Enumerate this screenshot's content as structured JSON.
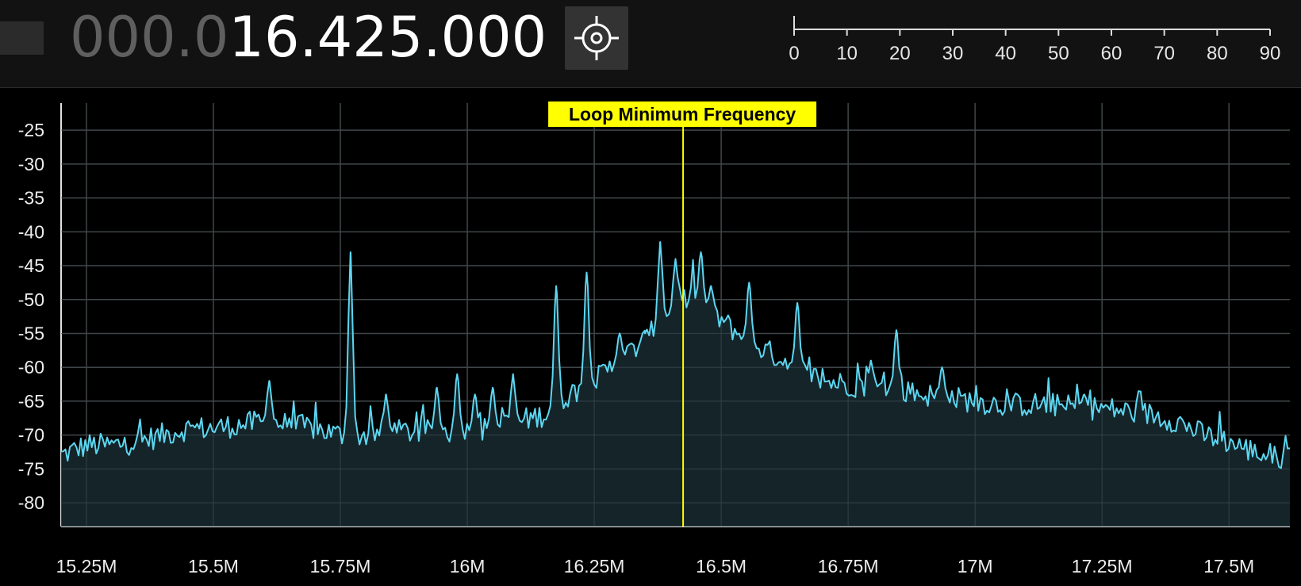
{
  "frequency_display": {
    "dim_part": "000.0",
    "bright_part": "16.425.000"
  },
  "center_button": {
    "icon": "crosshair-icon"
  },
  "gain_scale": {
    "ticks": [
      "0",
      "10",
      "20",
      "30",
      "40",
      "50",
      "60",
      "70",
      "80",
      "90"
    ]
  },
  "colors": {
    "trace": "#5cd6f0",
    "fill": "#172a30",
    "marker": "#ffff00",
    "marker_label_bg": "#ffff00",
    "marker_label_text": "#000000",
    "grid": "#444444"
  },
  "marker": {
    "label": "Loop Minimum Frequency",
    "frequency": 16.425
  },
  "chart_data": {
    "type": "line",
    "xlabel": "",
    "ylabel": "",
    "xlim": [
      15.2,
      17.62
    ],
    "ylim": [
      -83.5,
      -21
    ],
    "x_ticks": [
      15.25,
      15.5,
      15.75,
      16.0,
      16.25,
      16.5,
      16.75,
      17.0,
      17.25,
      17.5
    ],
    "x_tick_labels": [
      "15.25M",
      "15.5M",
      "15.75M",
      "16M",
      "16.25M",
      "16.5M",
      "16.75M",
      "17M",
      "17.25M",
      "17.5M"
    ],
    "y_ticks": [
      -25,
      -30,
      -35,
      -40,
      -45,
      -50,
      -55,
      -60,
      -65,
      -70,
      -75,
      -80
    ],
    "y_tick_labels": [
      "-25",
      "-30",
      "-35",
      "-40",
      "-45",
      "-50",
      "-55",
      "-60",
      "-65",
      "-70",
      "-75",
      "-80"
    ],
    "grid": true,
    "series": [
      {
        "x": [
          15.2,
          15.25,
          15.3,
          15.35,
          15.4,
          15.45,
          15.5,
          15.55,
          15.6,
          15.65,
          15.7,
          15.75,
          15.8,
          15.85,
          15.9,
          15.95,
          16.0,
          16.05,
          16.1,
          16.15,
          16.2,
          16.25,
          16.3,
          16.35,
          16.4,
          16.425,
          16.45,
          16.5,
          16.55,
          16.6,
          16.65,
          16.7,
          16.75,
          16.8,
          16.85,
          16.9,
          16.95,
          17.0,
          17.05,
          17.1,
          17.15,
          17.2,
          17.25,
          17.3,
          17.35,
          17.4,
          17.45,
          17.5,
          17.55,
          17.6
        ],
        "values": [
          -73,
          -71.5,
          -71.5,
          -71,
          -70,
          -69,
          -69,
          -68.5,
          -68,
          -68.5,
          -69,
          -70,
          -70,
          -69.5,
          -69.5,
          -69.5,
          -69.5,
          -69,
          -68,
          -67,
          -64,
          -62,
          -59,
          -56,
          -52,
          -50,
          -50,
          -53,
          -56,
          -58,
          -60,
          -62,
          -62.5,
          -63,
          -63.5,
          -64,
          -64.5,
          -65,
          -65.5,
          -65.5,
          -65.5,
          -66,
          -66,
          -66.5,
          -67,
          -68,
          -70,
          -71,
          -72.5,
          -73.5
        ]
      }
    ],
    "spikes": [
      {
        "x": 15.61,
        "y": -62
      },
      {
        "x": 15.77,
        "y": -43
      },
      {
        "x": 15.84,
        "y": -64
      },
      {
        "x": 15.94,
        "y": -63
      },
      {
        "x": 15.98,
        "y": -61
      },
      {
        "x": 16.015,
        "y": -64
      },
      {
        "x": 16.05,
        "y": -63
      },
      {
        "x": 16.09,
        "y": -61
      },
      {
        "x": 16.175,
        "y": -48
      },
      {
        "x": 16.235,
        "y": -46
      },
      {
        "x": 16.3,
        "y": -55
      },
      {
        "x": 16.35,
        "y": -55
      },
      {
        "x": 16.38,
        "y": -41.5
      },
      {
        "x": 16.41,
        "y": -44
      },
      {
        "x": 16.46,
        "y": -43
      },
      {
        "x": 16.48,
        "y": -48
      },
      {
        "x": 16.555,
        "y": -47.5
      },
      {
        "x": 16.65,
        "y": -50.5
      },
      {
        "x": 16.795,
        "y": -59
      },
      {
        "x": 16.845,
        "y": -54.5
      },
      {
        "x": 16.935,
        "y": -60
      },
      {
        "x": 17.215,
        "y": -64
      }
    ]
  }
}
